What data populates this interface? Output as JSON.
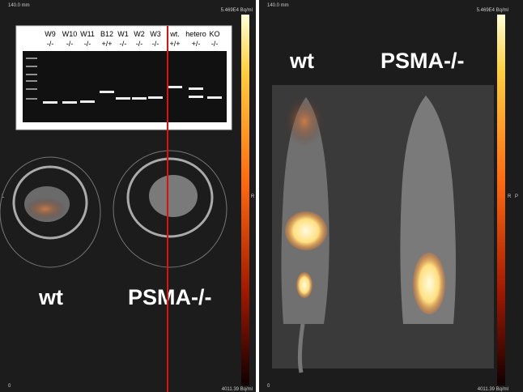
{
  "left_panel": {
    "scale_top": "140.0 mm",
    "scale_bottom": "0",
    "max_label": "5.469E4 Bq/ml",
    "min_label": "4011.39 Bq/ml",
    "side_left": "L",
    "side_right": "R",
    "labels": [
      "wt",
      "PSMA-/-"
    ]
  },
  "right_panel": {
    "scale_top": "140.0 mm",
    "scale_bottom": "0",
    "max_label": "5.469E4 Bq/ml",
    "min_label": "4011.39 Bq/ml",
    "side_right": "R",
    "side_right2": "P",
    "labels": [
      "wt",
      "PSMA-/-"
    ]
  },
  "gel": {
    "lanes": [
      {
        "name": "W9",
        "genotype": "-/-"
      },
      {
        "name": "W10",
        "genotype": "-/-"
      },
      {
        "name": "W11",
        "genotype": "-/-"
      },
      {
        "name": "B12",
        "genotype": "+/+"
      },
      {
        "name": "W1",
        "genotype": "-/-"
      },
      {
        "name": "W2",
        "genotype": "-/-"
      },
      {
        "name": "W3",
        "genotype": "-/-"
      },
      {
        "name": "wt.",
        "genotype": "+/+"
      },
      {
        "name": "hetero",
        "genotype": "+/-"
      },
      {
        "name": "KO",
        "genotype": "-/-"
      }
    ]
  }
}
